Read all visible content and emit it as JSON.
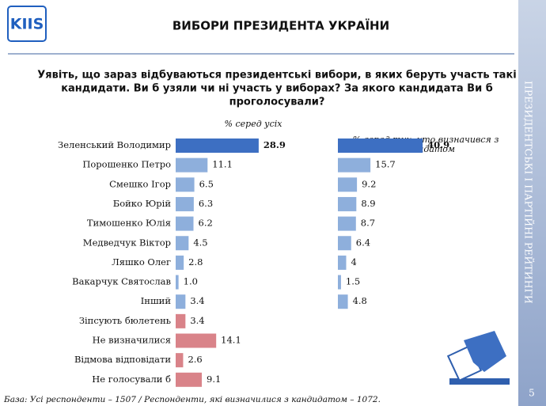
{
  "logo": "KIIS",
  "title": "ВИБОРИ ПРЕЗИДЕНТА УКРАЇНИ",
  "question": [
    "Уявіть, що зараз відбуваються президентські вибори, в яких беруть участь такі",
    "кандидати. Ви б узяли чи ні участь у виборах? За якого кандидата Ви б",
    "проголосували?"
  ],
  "sidebar": "ПРЕЗИДЕНТСЬКІ І ПАРТІЙНІ РЕЙТИНГИ",
  "page_number": "5",
  "footnote": "База: Усі респонденти – 1507 / Респонденти, які визначилися з кандидатом – 1072.",
  "chart_data": [
    {
      "type": "bar",
      "orientation": "horizontal",
      "subtitle": [
        "% серед усіх"
      ],
      "categories": [
        "Зеленський Володимир",
        "Порошенко Петро",
        "Смешко Ігор",
        "Бойко Юрій",
        "Тимошенко Юлія",
        "Медведчук Віктор",
        "Ляшко Олег",
        "Вакарчук Святослав",
        "Інший",
        "Зіпсують бюлетень",
        "Не визначилися",
        "Відмова відповідати",
        "Не голосували б"
      ],
      "values": [
        28.9,
        11.1,
        6.5,
        6.3,
        6.2,
        4.5,
        2.8,
        1.0,
        3.4,
        3.4,
        14.1,
        2.6,
        9.1
      ],
      "value_labels": [
        "28.9",
        "11.1",
        "6.5",
        "6.3",
        "6.2",
        "4.5",
        "2.8",
        "1.0",
        "3.4",
        "3.4",
        "14.1",
        "2.6",
        "9.1"
      ],
      "colors": [
        "#3d6fc2",
        "#8eafdc",
        "#8eafdc",
        "#8eafdc",
        "#8eafdc",
        "#8eafdc",
        "#8eafdc",
        "#8eafdc",
        "#8eafdc",
        "#d98389",
        "#d98389",
        "#d98389",
        "#d98389"
      ]
    },
    {
      "type": "bar",
      "orientation": "horizontal",
      "subtitle": [
        "% серед тих, хто визначився з",
        "кандидатом"
      ],
      "values": [
        40.9,
        15.7,
        9.2,
        8.9,
        8.7,
        6.4,
        4,
        1.5,
        4.8
      ],
      "value_labels": [
        "40.9",
        "15.7",
        "9.2",
        "8.9",
        "8.7",
        "6.4",
        "4",
        "1.5",
        "4.8"
      ],
      "colors": [
        "#3d6fc2",
        "#8eafdc",
        "#8eafdc",
        "#8eafdc",
        "#8eafdc",
        "#8eafdc",
        "#8eafdc",
        "#8eafdc",
        "#8eafdc"
      ]
    }
  ]
}
